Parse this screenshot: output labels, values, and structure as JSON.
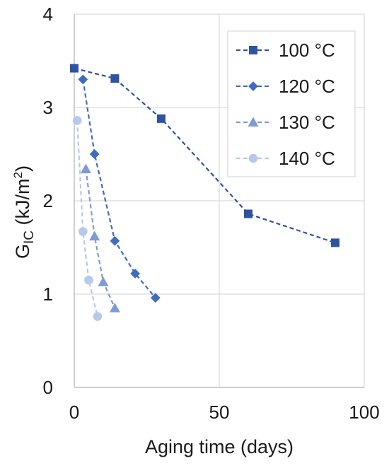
{
  "chart_data": {
    "type": "line",
    "xlabel": "Aging time (days)",
    "ylabel": {
      "main": "G",
      "sub": "IC",
      "unit_pre": " (kJ/m",
      "sup": "2",
      "unit_post": ")"
    },
    "xlim": [
      0,
      100
    ],
    "ylim": [
      0,
      4
    ],
    "xticks": [
      0,
      50,
      100
    ],
    "yticks": [
      0,
      1,
      2,
      3,
      4
    ],
    "grid": "on",
    "legend_position": "top-right",
    "series": [
      {
        "name": "100 °C",
        "marker": "square",
        "color": "#2e54a0",
        "x": [
          0,
          14,
          30,
          60,
          90
        ],
        "y": [
          3.42,
          3.31,
          2.88,
          1.86,
          1.55
        ]
      },
      {
        "name": "120 °C",
        "marker": "diamond",
        "color": "#3f6cc0",
        "x": [
          3,
          7,
          14,
          21,
          28
        ],
        "y": [
          3.3,
          2.5,
          1.57,
          1.22,
          0.96
        ]
      },
      {
        "name": "130 °C",
        "marker": "triangle",
        "color": "#7d9bd6",
        "x": [
          4,
          7,
          10,
          14
        ],
        "y": [
          2.34,
          1.62,
          1.13,
          0.85
        ]
      },
      {
        "name": "140 °C",
        "marker": "circle",
        "color": "#b7c9ea",
        "x": [
          1,
          3,
          5,
          8
        ],
        "y": [
          2.86,
          1.67,
          1.15,
          0.76
        ]
      }
    ]
  }
}
